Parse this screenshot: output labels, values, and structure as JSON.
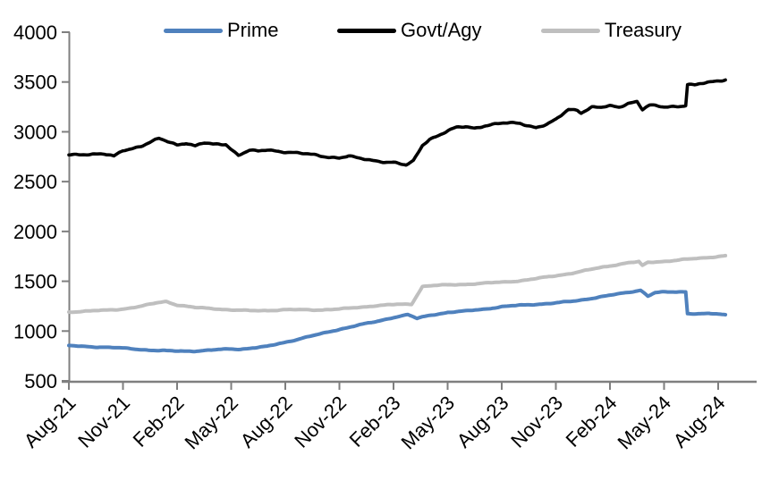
{
  "chart_data": {
    "type": "line",
    "title": "",
    "grid": false,
    "legend": {
      "position": "top",
      "items": [
        "Prime",
        "Govt/Agy",
        "Treasury"
      ]
    },
    "x_axis": {
      "unit": "month_offset_from_Aug-21",
      "tick_every_months": 3,
      "tick_labels": [
        "Aug-21",
        "Nov-21",
        "Feb-22",
        "May-22",
        "Aug-22",
        "Nov-22",
        "Feb-23",
        "May-23",
        "Aug-23",
        "Nov-23",
        "Feb-24",
        "May-24",
        "Aug-24"
      ],
      "label_rotation_deg": -45,
      "data_end_month": 36.4
    },
    "y_axis": {
      "min": 500,
      "max": 4000,
      "ticks": [
        4000,
        3500,
        3000,
        2500,
        2000,
        1500,
        1000,
        500
      ]
    },
    "series": [
      {
        "name": "Prime",
        "color": "#4f81bd",
        "stroke_width": 4,
        "wiggle_amp": 6,
        "seed": 1.2,
        "points": [
          [
            0,
            852
          ],
          [
            0.5,
            848
          ],
          [
            1,
            845
          ],
          [
            2,
            838
          ],
          [
            3,
            828
          ],
          [
            4,
            815
          ],
          [
            5,
            804
          ],
          [
            6,
            798
          ],
          [
            7,
            800
          ],
          [
            8,
            810
          ],
          [
            9,
            820
          ],
          [
            9.5,
            818
          ],
          [
            10,
            828
          ],
          [
            11,
            845
          ],
          [
            12,
            888
          ],
          [
            13,
            932
          ],
          [
            14,
            972
          ],
          [
            15,
            1018
          ],
          [
            16,
            1058
          ],
          [
            17,
            1092
          ],
          [
            18,
            1138
          ],
          [
            18.8,
            1165
          ],
          [
            19.3,
            1125
          ],
          [
            20,
            1158
          ],
          [
            21,
            1188
          ],
          [
            22,
            1200
          ],
          [
            23,
            1220
          ],
          [
            24,
            1245
          ],
          [
            25,
            1258
          ],
          [
            26,
            1270
          ],
          [
            27,
            1282
          ],
          [
            28,
            1300
          ],
          [
            29,
            1330
          ],
          [
            30,
            1358
          ],
          [
            31,
            1388
          ],
          [
            31.7,
            1412
          ],
          [
            32.1,
            1352
          ],
          [
            32.5,
            1385
          ],
          [
            33,
            1390
          ],
          [
            34,
            1394
          ],
          [
            34.2,
            1396
          ],
          [
            34.3,
            1178
          ],
          [
            35,
            1172
          ],
          [
            35.5,
            1175
          ],
          [
            36,
            1168
          ],
          [
            36.4,
            1163
          ]
        ]
      },
      {
        "name": "Govt/Agy",
        "color": "#000000",
        "stroke_width": 3.6,
        "wiggle_amp": 13,
        "seed": 2.7,
        "points": [
          [
            0,
            2768
          ],
          [
            1,
            2780
          ],
          [
            2,
            2772
          ],
          [
            2.5,
            2750
          ],
          [
            3,
            2815
          ],
          [
            4,
            2858
          ],
          [
            5,
            2928
          ],
          [
            5.5,
            2900
          ],
          [
            6,
            2872
          ],
          [
            6.5,
            2892
          ],
          [
            7,
            2858
          ],
          [
            7.5,
            2886
          ],
          [
            8,
            2870
          ],
          [
            8.7,
            2878
          ],
          [
            9,
            2830
          ],
          [
            9.4,
            2768
          ],
          [
            10,
            2812
          ],
          [
            10.5,
            2800
          ],
          [
            11,
            2818
          ],
          [
            12,
            2802
          ],
          [
            13,
            2778
          ],
          [
            14,
            2758
          ],
          [
            15,
            2740
          ],
          [
            15.5,
            2755
          ],
          [
            16,
            2732
          ],
          [
            17,
            2712
          ],
          [
            18,
            2692
          ],
          [
            18.7,
            2660
          ],
          [
            19.1,
            2705
          ],
          [
            19.6,
            2868
          ],
          [
            20,
            2930
          ],
          [
            20.5,
            2965
          ],
          [
            21,
            3005
          ],
          [
            21.5,
            3040
          ],
          [
            22,
            3052
          ],
          [
            22.5,
            3040
          ],
          [
            23,
            3062
          ],
          [
            24,
            3082
          ],
          [
            25,
            3090
          ],
          [
            25.9,
            3044
          ],
          [
            26.5,
            3070
          ],
          [
            27,
            3118
          ],
          [
            27.7,
            3228
          ],
          [
            28.2,
            3222
          ],
          [
            28.4,
            3195
          ],
          [
            29,
            3245
          ],
          [
            29.5,
            3240
          ],
          [
            30,
            3258
          ],
          [
            30.5,
            3250
          ],
          [
            31,
            3290
          ],
          [
            31.5,
            3305
          ],
          [
            31.8,
            3222
          ],
          [
            32.2,
            3262
          ],
          [
            33,
            3250
          ],
          [
            33.5,
            3258
          ],
          [
            34,
            3262
          ],
          [
            34.2,
            3266
          ],
          [
            34.3,
            3475
          ],
          [
            34.7,
            3465
          ],
          [
            35,
            3478
          ],
          [
            35.5,
            3495
          ],
          [
            36,
            3515
          ],
          [
            36.4,
            3528
          ]
        ]
      },
      {
        "name": "Treasury",
        "color": "#bfbfbf",
        "stroke_width": 4,
        "wiggle_amp": 6,
        "seed": 4.1,
        "points": [
          [
            0,
            1192
          ],
          [
            1,
            1200
          ],
          [
            2,
            1208
          ],
          [
            3,
            1222
          ],
          [
            4,
            1248
          ],
          [
            5,
            1288
          ],
          [
            5.4,
            1298
          ],
          [
            6,
            1262
          ],
          [
            7,
            1235
          ],
          [
            8,
            1226
          ],
          [
            9,
            1212
          ],
          [
            10,
            1204
          ],
          [
            11,
            1207
          ],
          [
            12,
            1214
          ],
          [
            13,
            1213
          ],
          [
            14,
            1213
          ],
          [
            15,
            1220
          ],
          [
            16,
            1236
          ],
          [
            17,
            1255
          ],
          [
            18,
            1265
          ],
          [
            19,
            1270
          ],
          [
            19.6,
            1448
          ],
          [
            20,
            1455
          ],
          [
            21,
            1462
          ],
          [
            22,
            1470
          ],
          [
            23,
            1480
          ],
          [
            24,
            1490
          ],
          [
            25,
            1505
          ],
          [
            26,
            1528
          ],
          [
            27,
            1555
          ],
          [
            28,
            1585
          ],
          [
            29,
            1620
          ],
          [
            30,
            1655
          ],
          [
            31,
            1686
          ],
          [
            31.6,
            1694
          ],
          [
            31.8,
            1656
          ],
          [
            32.1,
            1688
          ],
          [
            33,
            1700
          ],
          [
            34,
            1716
          ],
          [
            35,
            1730
          ],
          [
            36,
            1750
          ],
          [
            36.4,
            1757
          ]
        ]
      }
    ],
    "colors": {
      "axis": "#7f7f7f",
      "text": "#000000",
      "background": "#ffffff"
    }
  }
}
